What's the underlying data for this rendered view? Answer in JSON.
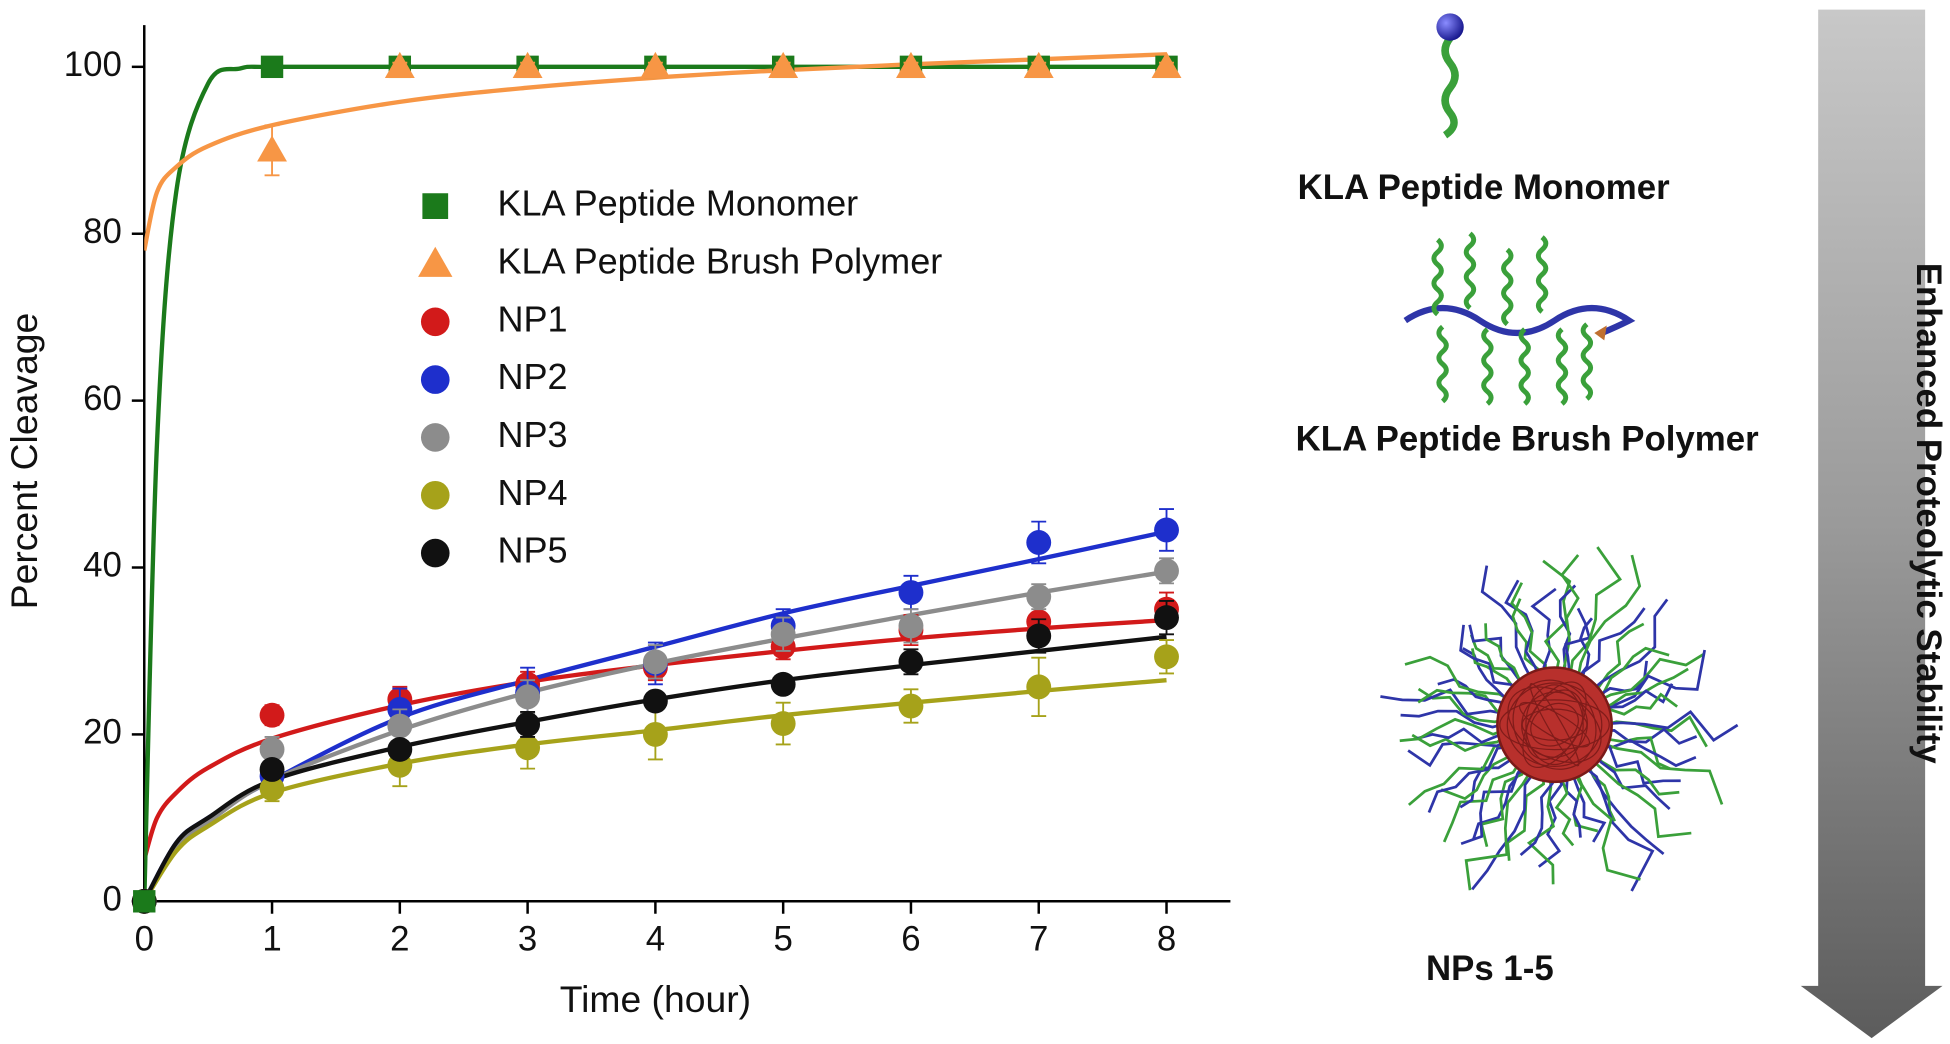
{
  "chart_data": {
    "type": "scatter",
    "xlabel": "Time (hour)",
    "ylabel": "Percent Cleavage",
    "xlim": [
      0,
      8.5
    ],
    "ylim": [
      0,
      105
    ],
    "xticks": [
      0,
      1,
      2,
      3,
      4,
      5,
      6,
      7,
      8
    ],
    "yticks": [
      0,
      20,
      40,
      60,
      80,
      100
    ],
    "x": [
      0,
      1,
      2,
      3,
      4,
      5,
      6,
      7,
      8
    ],
    "series": [
      {
        "name": "KLA Peptide Monomer",
        "color": "#1b7a1b",
        "marker": "square",
        "values": [
          0,
          100,
          100,
          100,
          100,
          100,
          100,
          100,
          100
        ],
        "errors": [
          0,
          0.3,
          0.3,
          0.3,
          0.3,
          0.3,
          0.3,
          0.3,
          0.3
        ],
        "fit_x": [
          0,
          0.1,
          0.25,
          0.5,
          0.75,
          1,
          2,
          4,
          6,
          8
        ],
        "fit_y": [
          0,
          55,
          85,
          98,
          99.8,
          100,
          100,
          100,
          100,
          100
        ]
      },
      {
        "name": "KLA Peptide Brush Polymer",
        "color": "#f79645",
        "marker": "triangle",
        "values": [
          null,
          90,
          100,
          100,
          100,
          100,
          100,
          100,
          100
        ],
        "errors": [
          null,
          3,
          0.5,
          0.5,
          0.5,
          0.5,
          0.5,
          0.5,
          0.5
        ],
        "fit_x": [
          0,
          0.1,
          0.25,
          0.5,
          1,
          2,
          3,
          4,
          5,
          6,
          7,
          8
        ],
        "fit_y": [
          78,
          85,
          88,
          90.5,
          93,
          95.8,
          97.5,
          98.7,
          99.6,
          100.3,
          100.9,
          101.5
        ]
      },
      {
        "name": "NP1",
        "color": "#d21a1a",
        "marker": "circle",
        "values": [
          0,
          22.3,
          24.2,
          26,
          28,
          30.5,
          32.5,
          33.5,
          35
        ],
        "errors": [
          0,
          1.2,
          1.5,
          1.5,
          1.5,
          1.5,
          1.8,
          2,
          2
        ],
        "fit_x": [
          0,
          0.1,
          0.25,
          0.5,
          1,
          2,
          3,
          4,
          5,
          6,
          7,
          8
        ],
        "fit_y": [
          5,
          10,
          13,
          16,
          19.5,
          23.5,
          26.3,
          28.3,
          30,
          31.5,
          32.7,
          33.7
        ]
      },
      {
        "name": "NP2",
        "color": "#1e2fcc",
        "marker": "circle",
        "values": [
          0,
          15,
          23,
          25,
          28.5,
          33,
          37,
          43,
          44.5
        ],
        "errors": [
          0,
          1.5,
          2.5,
          3,
          2.5,
          2,
          2,
          2.5,
          2.5
        ],
        "fit_x": [
          0,
          0.25,
          0.5,
          1,
          2,
          3,
          4,
          5,
          6,
          7,
          8
        ],
        "fit_y": [
          0,
          7,
          10,
          14.5,
          22,
          26.5,
          30.5,
          34.5,
          37.8,
          41,
          44.3
        ]
      },
      {
        "name": "NP3",
        "color": "#8c8c8c",
        "marker": "circle",
        "values": [
          0,
          18.2,
          21,
          24.5,
          28.7,
          32,
          33,
          36.5,
          39.6
        ],
        "errors": [
          0,
          1.5,
          2,
          2,
          2,
          2,
          2,
          1.5,
          1.5
        ],
        "fit_x": [
          0,
          0.25,
          0.5,
          1,
          2,
          3,
          4,
          5,
          6,
          7,
          8
        ],
        "fit_y": [
          0,
          6.5,
          9.5,
          14.5,
          20.5,
          25,
          28.5,
          31.5,
          34.3,
          37,
          39.5
        ]
      },
      {
        "name": "NP4",
        "color": "#a6a21a",
        "marker": "circle",
        "values": [
          0,
          13.5,
          16.3,
          18.4,
          20,
          21.3,
          23.4,
          25.7,
          29.3
        ],
        "errors": [
          0,
          1.5,
          2.5,
          2.5,
          3,
          2.5,
          2,
          3.5,
          2
        ],
        "fit_x": [
          0,
          0.25,
          0.5,
          1,
          2,
          3,
          4,
          5,
          6,
          7,
          8
        ],
        "fit_y": [
          0,
          6,
          9,
          13,
          16.5,
          18.8,
          20.5,
          22.3,
          23.8,
          25.2,
          26.5
        ]
      },
      {
        "name": "NP5",
        "color": "#111111",
        "marker": "circle",
        "values": [
          0,
          15.8,
          18.2,
          21.2,
          24,
          26,
          28.7,
          31.8,
          34
        ],
        "errors": [
          0,
          1,
          1,
          1.5,
          1,
          1,
          1.5,
          2,
          2
        ],
        "fit_x": [
          0,
          0.25,
          0.5,
          1,
          2,
          3,
          4,
          5,
          6,
          7,
          8
        ],
        "fit_y": [
          0,
          7,
          10,
          14.5,
          18.5,
          21.5,
          24.2,
          26.5,
          28.3,
          30,
          31.7
        ]
      }
    ]
  },
  "panel": {
    "monomer_label": "KLA Peptide Monomer",
    "brush_label": "KLA Peptide Brush Polymer",
    "np_label": "NPs 1-5",
    "arrow_label": "Enhanced Proteolytic Stability"
  }
}
